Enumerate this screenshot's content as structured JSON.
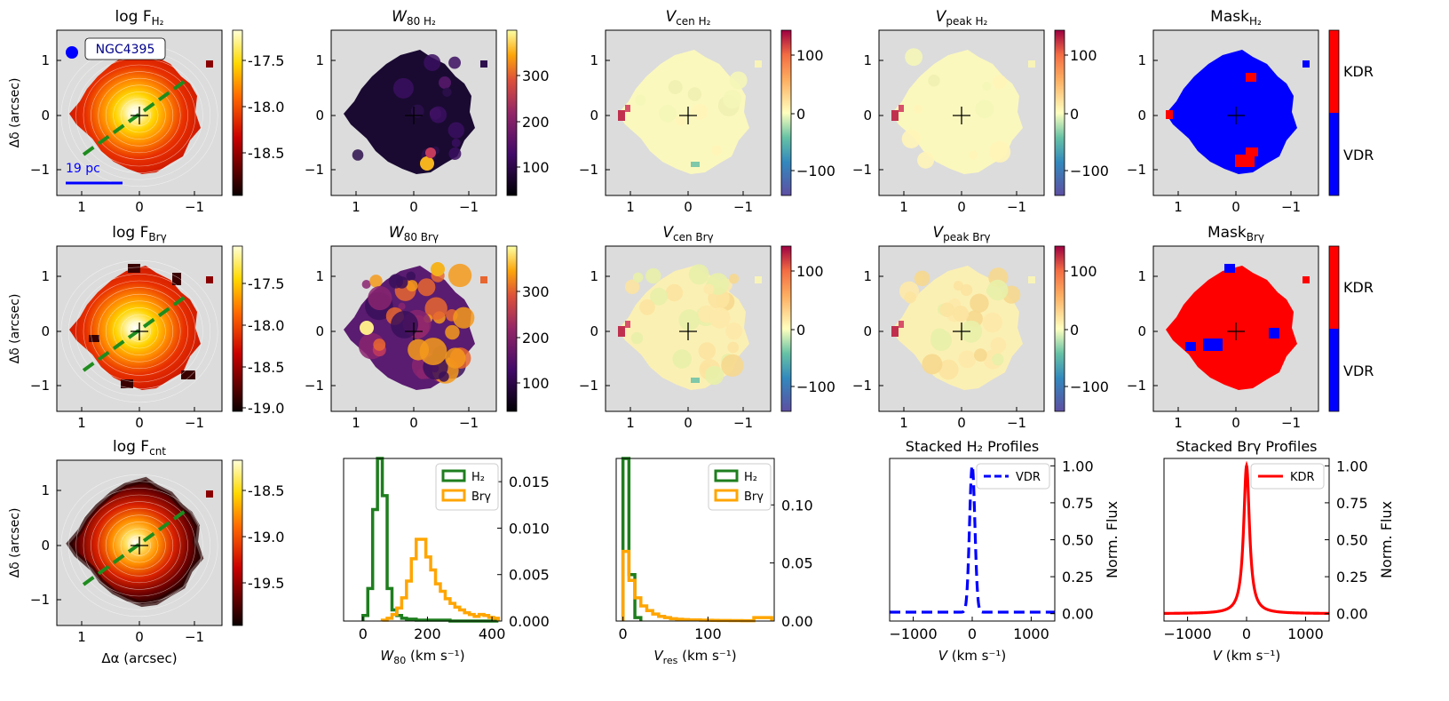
{
  "figure": {
    "target": "NGC4395",
    "scale_bar_label": "19 pc"
  },
  "colors": {
    "map_background": "#dcdcdc",
    "kdr": "#ff0000",
    "vdr": "#0000ff",
    "h2_hist": "#1e7e1e",
    "brg_hist": "#ffa500",
    "pa_line": "#1e8c1e"
  },
  "chart_data": [
    {
      "id": "flux_h2",
      "type": "heatmap",
      "title_base": "log F",
      "title_sub": "H₂",
      "colormap": "hot",
      "colorbar_ticks": [
        "-17.5",
        "-18.0",
        "-18.5"
      ],
      "xlabel": "",
      "ylabel": "Δδ (arcsec)",
      "xticks": [
        "1",
        "0",
        "−1"
      ],
      "yticks": [
        "1",
        "0",
        "−1"
      ]
    },
    {
      "id": "w80_h2",
      "type": "heatmap",
      "title_base": "W",
      "title_sub": "80 H₂",
      "colormap": "inferno",
      "colorbar_ticks": [
        "300",
        "200",
        "100"
      ],
      "xticks": [
        "1",
        "0",
        "−1"
      ],
      "yticks": [
        "1",
        "0",
        "−1"
      ]
    },
    {
      "id": "vcen_h2",
      "type": "heatmap",
      "title_base": "V",
      "title_sub": "cen H₂",
      "colormap": "spectral",
      "colorbar_ticks": [
        "100",
        "0",
        "−100"
      ],
      "xticks": [
        "1",
        "0",
        "−1"
      ],
      "yticks": [
        "1",
        "0",
        "−1"
      ]
    },
    {
      "id": "vpeak_h2",
      "type": "heatmap",
      "title_base": "V",
      "title_sub": "peak H₂",
      "colormap": "spectral",
      "colorbar_ticks": [
        "100",
        "0",
        "−100"
      ],
      "xticks": [
        "1",
        "0",
        "−1"
      ],
      "yticks": [
        "1",
        "0",
        "−1"
      ]
    },
    {
      "id": "mask_h2",
      "type": "heatmap",
      "title_base": "Mask",
      "title_sub": "H₂",
      "colormap": "binary",
      "colorbar_ticks": [
        "KDR",
        "VDR"
      ],
      "xticks": [
        "1",
        "0",
        "−1"
      ],
      "yticks": [
        "1",
        "0",
        "−1"
      ]
    },
    {
      "id": "flux_brg",
      "type": "heatmap",
      "title_base": "log F",
      "title_sub": "Brγ",
      "colormap": "hot",
      "colorbar_ticks": [
        "-17.5",
        "-18.0",
        "-18.5",
        "-19.0"
      ],
      "ylabel": "Δδ (arcsec)",
      "xticks": [
        "1",
        "0",
        "−1"
      ],
      "yticks": [
        "1",
        "0",
        "−1"
      ]
    },
    {
      "id": "w80_brg",
      "type": "heatmap",
      "title_base": "W",
      "title_sub": "80 Brγ",
      "colormap": "inferno",
      "colorbar_ticks": [
        "300",
        "200",
        "100"
      ],
      "xticks": [
        "1",
        "0",
        "−1"
      ],
      "yticks": [
        "1",
        "0",
        "−1"
      ]
    },
    {
      "id": "vcen_brg",
      "type": "heatmap",
      "title_base": "V",
      "title_sub": "cen Brγ",
      "colormap": "spectral",
      "colorbar_ticks": [
        "100",
        "0",
        "−100"
      ],
      "xticks": [
        "1",
        "0",
        "−1"
      ],
      "yticks": [
        "1",
        "0",
        "−1"
      ]
    },
    {
      "id": "vpeak_brg",
      "type": "heatmap",
      "title_base": "V",
      "title_sub": "peak Brγ",
      "colormap": "spectral",
      "colorbar_ticks": [
        "100",
        "0",
        "−100"
      ],
      "xticks": [
        "1",
        "0",
        "−1"
      ],
      "yticks": [
        "1",
        "0",
        "−1"
      ]
    },
    {
      "id": "mask_brg",
      "type": "heatmap",
      "title_base": "Mask",
      "title_sub": "Brγ",
      "colormap": "binary",
      "colorbar_ticks": [
        "KDR",
        "VDR"
      ],
      "xticks": [
        "1",
        "0",
        "−1"
      ],
      "yticks": [
        "1",
        "0",
        "−1"
      ]
    },
    {
      "id": "flux_cnt",
      "type": "heatmap",
      "title_base": "log F",
      "title_sub": "cnt",
      "colormap": "hot",
      "colorbar_ticks": [
        "-18.5",
        "-19.0",
        "-19.5"
      ],
      "xlabel": "Δα (arcsec)",
      "ylabel": "Δδ (arcsec)",
      "xticks": [
        "1",
        "0",
        "−1"
      ],
      "yticks": [
        "1",
        "0",
        "−1"
      ]
    },
    {
      "id": "hist_w80",
      "type": "bar",
      "xlabel_base": "W",
      "xlabel_sub": "80",
      "xlabel_unit": " (km s⁻¹)",
      "xlim": [
        -60,
        430
      ],
      "ylim": [
        0,
        0.0175
      ],
      "xticks": [
        "0",
        "200",
        "400"
      ],
      "yticks": [
        "0.000",
        "0.005",
        "0.010",
        "0.015"
      ],
      "legend": [
        "H₂",
        "Brγ"
      ],
      "series": [
        {
          "name": "H₂",
          "bin_edges": [
            0,
            15,
            30,
            45,
            60,
            75,
            90,
            105,
            120,
            135,
            150,
            165,
            180,
            195,
            210,
            225,
            240,
            255,
            270,
            285,
            300,
            315,
            330,
            345,
            360,
            375,
            390,
            405,
            420
          ],
          "values": [
            0.0006,
            0.0035,
            0.012,
            0.0175,
            0.0135,
            0.0035,
            0.0012,
            0.0006,
            0.0003,
            0.0002,
            0.0002,
            0.0001,
            0.0001,
            0.0001,
            0.0001,
            0.0001,
            0.0001,
            0.0001,
            0,
            0,
            0,
            0,
            0,
            0,
            0,
            0,
            0,
            0
          ]
        },
        {
          "name": "Brγ",
          "bin_edges": [
            60,
            75,
            90,
            105,
            120,
            135,
            150,
            165,
            180,
            195,
            210,
            225,
            240,
            255,
            270,
            285,
            300,
            315,
            330,
            345,
            360,
            375,
            390,
            405,
            420
          ],
          "values": [
            0.0001,
            0.0003,
            0.0007,
            0.0014,
            0.0025,
            0.0043,
            0.0067,
            0.0088,
            0.0088,
            0.0069,
            0.0055,
            0.004,
            0.0032,
            0.0024,
            0.0019,
            0.0015,
            0.0012,
            0.0009,
            0.0007,
            0.0005,
            0.0007,
            0.0006,
            0.0004,
            0.0003
          ]
        }
      ]
    },
    {
      "id": "hist_vres",
      "type": "bar",
      "xlabel_base": "V",
      "xlabel_sub": "res",
      "xlabel_unit": " (km s⁻¹)",
      "xlim": [
        -8,
        178
      ],
      "ylim": [
        0,
        0.14
      ],
      "xticks": [
        "0",
        "100"
      ],
      "yticks": [
        "0.00",
        "0.05",
        "0.10"
      ],
      "legend": [
        "H₂",
        "Brγ"
      ],
      "series": [
        {
          "name": "H₂",
          "bin_edges": [
            0,
            7,
            14,
            21
          ],
          "values": [
            0.14,
            0.04,
            0.003
          ]
        },
        {
          "name": "Brγ",
          "bin_edges": [
            0,
            7,
            14,
            21,
            28,
            35,
            42,
            49,
            56,
            63,
            70,
            77,
            84,
            91,
            98,
            105,
            112,
            119,
            126,
            133,
            140,
            147,
            154,
            161,
            168,
            175
          ],
          "values": [
            0.06,
            0.035,
            0.02,
            0.013,
            0.009,
            0.006,
            0.004,
            0.003,
            0.002,
            0.0015,
            0.0012,
            0.001,
            0.001,
            0.0008,
            0.0007,
            0.0006,
            0.0005,
            0.0005,
            0.0004,
            0.0004,
            0.0003,
            0.0003,
            0.003,
            0.003,
            0.003
          ]
        }
      ]
    },
    {
      "id": "stack_h2",
      "type": "line",
      "title": "Stacked H₂ Profiles",
      "xlabel_base": "V",
      "xlabel_unit": " (km s⁻¹)",
      "ylabel": "Norm. Flux",
      "xlim": [
        -1400,
        1400
      ],
      "ylim": [
        -0.05,
        1.05
      ],
      "xticks": [
        "−1000",
        "0",
        "1000"
      ],
      "yticks": [
        "0.00",
        "0.25",
        "0.50",
        "0.75",
        "1.00"
      ],
      "series": [
        {
          "name": "VDR",
          "center": 0,
          "sigma": 45,
          "baseline": 0.01,
          "style": "dashed"
        }
      ]
    },
    {
      "id": "stack_brg",
      "type": "line",
      "title": "Stacked Brγ Profiles",
      "xlabel_base": "V",
      "xlabel_unit": " (km s⁻¹)",
      "ylabel": "Norm. Flux",
      "xlim": [
        -1400,
        1400
      ],
      "ylim": [
        -0.05,
        1.05
      ],
      "xticks": [
        "−1000",
        "0",
        "1000"
      ],
      "yticks": [
        "0.00",
        "0.25",
        "0.50",
        "0.75",
        "1.00"
      ],
      "series": [
        {
          "name": "KDR",
          "center": 0,
          "gamma": 60,
          "baseline": 0.0,
          "style": "solid"
        }
      ]
    }
  ]
}
